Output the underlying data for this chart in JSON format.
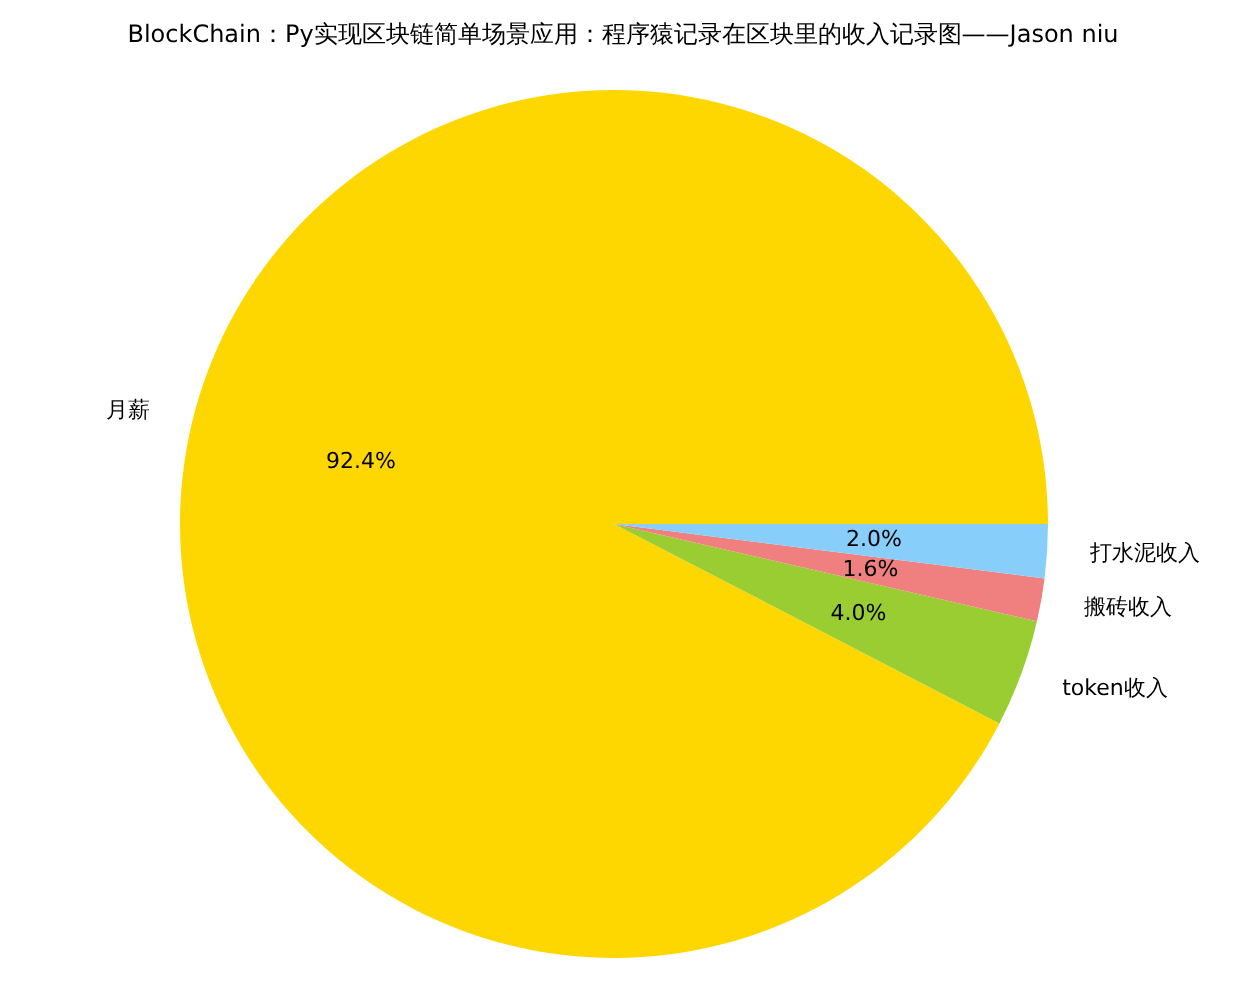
{
  "chart_data": {
    "type": "pie",
    "title": "BlockChain：Py实现区块链简单场景应用：程序猿记录在区块里的收入记录图——Jason niu",
    "categories": [
      "月薪",
      "token收入",
      "搬砖收入",
      "打水泥收入"
    ],
    "values": [
      92.4,
      4.0,
      1.6,
      2.0
    ],
    "colors": [
      "#ffd700",
      "#9acd32",
      "#f08080",
      "#87cefa"
    ],
    "value_labels": [
      "92.4%",
      "4.0%",
      "1.6%",
      "2.0%"
    ]
  }
}
